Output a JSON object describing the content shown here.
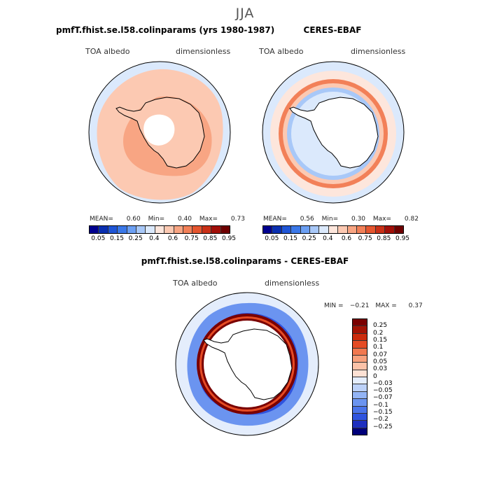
{
  "season": "JJA",
  "palettes": {
    "abs_colors": [
      "#00008f",
      "#0a2fb0",
      "#1f55d6",
      "#3b78e8",
      "#6b9ff3",
      "#a8c8f8",
      "#dbe9fc",
      "#fde6dc",
      "#fcc9b2",
      "#f8a583",
      "#f28058",
      "#e5562f",
      "#c93017",
      "#a10f08",
      "#6e0000"
    ],
    "diff_colors": [
      "#00007a",
      "#1e2fbf",
      "#2f54df",
      "#4a74ea",
      "#6b94f0",
      "#93b4f5",
      "#bcd1f8",
      "#e4edfc",
      "#fde1d4",
      "#fbc2a8",
      "#f7a07c",
      "#f1784f",
      "#e54b24",
      "#cc2b0c",
      "#a41304",
      "#7a0000"
    ],
    "ocean_fill": "#f9ddd0",
    "land_fill": "#ffffff"
  },
  "panels": [
    {
      "title": "pmfT.fhist.se.l58.colinparams (yrs 1980-1987)",
      "variable": "TOA albedo",
      "units": "dimensionless",
      "mean_label": "MEAN=",
      "mean": "0.60",
      "min_label": "Min=",
      "min": "0.40",
      "max_label": "Max=",
      "max": "0.73"
    },
    {
      "title": "CERES-EBAF",
      "variable": "TOA albedo",
      "units": "dimensionless",
      "mean_label": "MEAN=",
      "mean": "0.56",
      "min_label": "Min=",
      "min": "0.30",
      "max_label": "Max=",
      "max": "0.82"
    },
    {
      "title": "pmfT.fhist.se.l58.colinparams - CERES-EBAF",
      "variable": "TOA albedo",
      "units": "dimensionless",
      "min_label": "MIN =",
      "min": "−0.21",
      "max_label": "MAX =",
      "max": "0.37"
    }
  ],
  "chart_data": [
    {
      "type": "heatmap",
      "title": "pmfT.fhist.se.l58.colinparams (yrs 1980-1987)",
      "projection": "south polar stereographic",
      "levels": [
        "0.05",
        "0.15",
        "0.25",
        "0.4",
        "0.6",
        "0.75",
        "0.85",
        "0.95"
      ],
      "mean": 0.6,
      "min": 0.4,
      "max": 0.73
    },
    {
      "type": "heatmap",
      "title": "CERES-EBAF",
      "projection": "south polar stereographic",
      "levels": [
        "0.05",
        "0.15",
        "0.25",
        "0.4",
        "0.6",
        "0.75",
        "0.85",
        "0.95"
      ],
      "mean": 0.56,
      "min": 0.3,
      "max": 0.82
    },
    {
      "type": "heatmap",
      "title": "pmfT.fhist.se.l58.colinparams - CERES-EBAF",
      "projection": "south polar stereographic",
      "levels": [
        "0.25",
        "0.2",
        "0.15",
        "0.1",
        "0.07",
        "0.05",
        "0.03",
        "0",
        "−0.03",
        "−0.05",
        "−0.07",
        "−0.1",
        "−0.15",
        "−0.2",
        "−0.25"
      ],
      "min": -0.21,
      "max": 0.37
    }
  ]
}
